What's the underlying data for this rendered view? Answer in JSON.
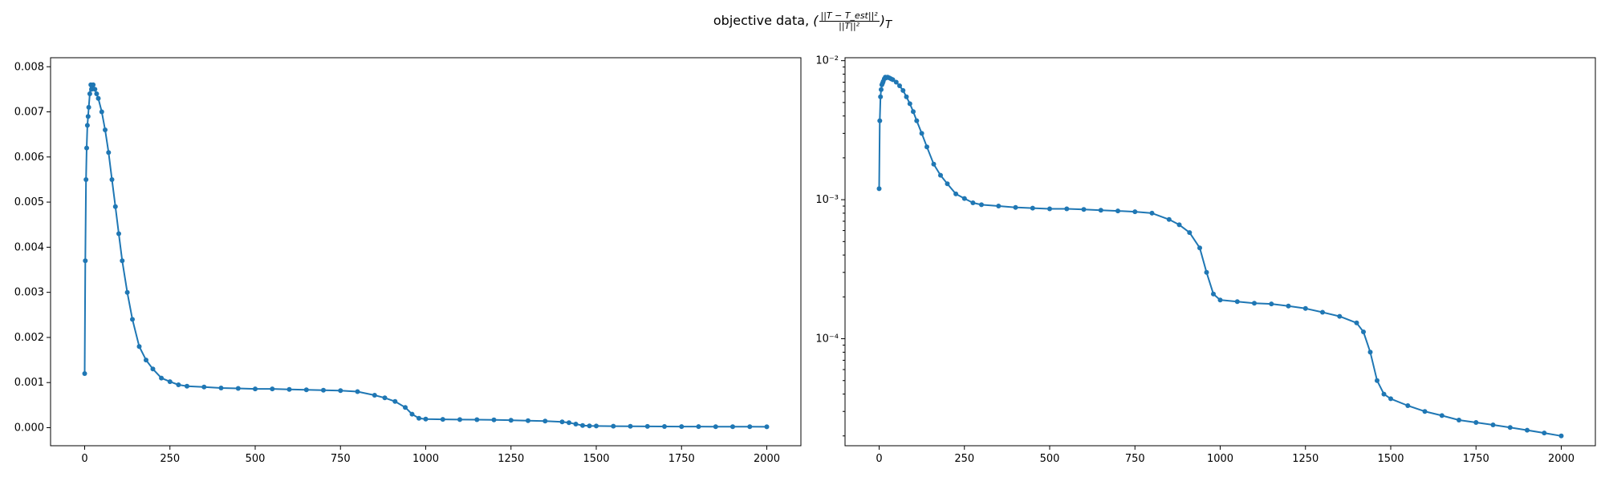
{
  "figure": {
    "title_prefix": "objective data,",
    "title_open": "(",
    "title_fraction_numerator": "||T − T_est||²",
    "title_fraction_denominator": "||T||²",
    "title_close": ")",
    "title_subscript": "T",
    "series_color": "#1f77b4"
  },
  "chart_data": [
    {
      "type": "line",
      "marker": "dot",
      "title": "",
      "xlabel": "",
      "ylabel": "",
      "yscale": "linear",
      "xlim": [
        -100,
        2100
      ],
      "ylim": [
        -0.0004,
        0.0082
      ],
      "xticks": [
        0,
        250,
        500,
        750,
        1000,
        1250,
        1500,
        1750,
        2000
      ],
      "xtick_labels": [
        "0",
        "250",
        "500",
        "750",
        "1000",
        "1250",
        "1500",
        "1750",
        "2000"
      ],
      "yticks": [
        0,
        0.001,
        0.002,
        0.003,
        0.004,
        0.005,
        0.006,
        0.007,
        0.008
      ],
      "ytick_labels": [
        "0.000",
        "0.001",
        "0.002",
        "0.003",
        "0.004",
        "0.005",
        "0.006",
        "0.007",
        "0.008"
      ],
      "grid": false,
      "series": [
        {
          "x": [
            0,
            2,
            4,
            6,
            8,
            10,
            12,
            15,
            18,
            20,
            25,
            30,
            35,
            40,
            50,
            60,
            70,
            80,
            90,
            100,
            110,
            125,
            140,
            160,
            180,
            200,
            225,
            250,
            275,
            300,
            350,
            400,
            450,
            500,
            550,
            600,
            650,
            700,
            750,
            800,
            850,
            880,
            910,
            940,
            960,
            980,
            1000,
            1050,
            1100,
            1150,
            1200,
            1250,
            1300,
            1350,
            1400,
            1420,
            1440,
            1460,
            1480,
            1500,
            1550,
            1600,
            1650,
            1700,
            1750,
            1800,
            1850,
            1900,
            1950,
            2000
          ],
          "y": [
            0.0012,
            0.0037,
            0.0055,
            0.0062,
            0.0067,
            0.0069,
            0.0071,
            0.0074,
            0.0076,
            0.0075,
            0.0076,
            0.0075,
            0.0074,
            0.0073,
            0.007,
            0.0066,
            0.0061,
            0.0055,
            0.0049,
            0.0043,
            0.0037,
            0.003,
            0.0024,
            0.0018,
            0.0015,
            0.0013,
            0.0011,
            0.00102,
            0.00095,
            0.00092,
            0.0009,
            0.00088,
            0.00087,
            0.00086,
            0.00086,
            0.00085,
            0.00084,
            0.00083,
            0.00082,
            0.0008,
            0.00072,
            0.00066,
            0.00058,
            0.00045,
            0.0003,
            0.00021,
            0.00019,
            0.000185,
            0.00018,
            0.000178,
            0.000172,
            0.000165,
            0.000155,
            0.000145,
            0.00013,
            0.000112,
            8e-05,
            5e-05,
            4e-05,
            3.7e-05,
            3.3e-05,
            3e-05,
            2.8e-05,
            2.6e-05,
            2.5e-05,
            2.4e-05,
            2.3e-05,
            2.2e-05,
            2.1e-05,
            2e-05
          ]
        }
      ]
    },
    {
      "type": "line",
      "marker": "dot",
      "title": "",
      "xlabel": "",
      "ylabel": "",
      "yscale": "log",
      "xlim": [
        -100,
        2100
      ],
      "ylim": [
        1.7e-05,
        0.0105
      ],
      "xticks": [
        0,
        250,
        500,
        750,
        1000,
        1250,
        1500,
        1750,
        2000
      ],
      "xtick_labels": [
        "0",
        "250",
        "500",
        "750",
        "1000",
        "1250",
        "1500",
        "1750",
        "2000"
      ],
      "yticks": [
        0.0001,
        0.001,
        0.01
      ],
      "ytick_labels": [
        "10⁻⁴",
        "10⁻³",
        "10⁻²"
      ],
      "grid": false,
      "series": [
        {
          "x": [
            0,
            2,
            4,
            6,
            8,
            10,
            12,
            15,
            18,
            20,
            25,
            30,
            35,
            40,
            50,
            60,
            70,
            80,
            90,
            100,
            110,
            125,
            140,
            160,
            180,
            200,
            225,
            250,
            275,
            300,
            350,
            400,
            450,
            500,
            550,
            600,
            650,
            700,
            750,
            800,
            850,
            880,
            910,
            940,
            960,
            980,
            1000,
            1050,
            1100,
            1150,
            1200,
            1250,
            1300,
            1350,
            1400,
            1420,
            1440,
            1460,
            1480,
            1500,
            1550,
            1600,
            1650,
            1700,
            1750,
            1800,
            1850,
            1900,
            1950,
            2000
          ],
          "y": [
            0.0012,
            0.0037,
            0.0055,
            0.0062,
            0.0067,
            0.0069,
            0.0071,
            0.0074,
            0.0076,
            0.0075,
            0.0076,
            0.0075,
            0.0074,
            0.0073,
            0.007,
            0.0066,
            0.0061,
            0.0055,
            0.0049,
            0.0043,
            0.0037,
            0.003,
            0.0024,
            0.0018,
            0.0015,
            0.0013,
            0.0011,
            0.00102,
            0.00095,
            0.00092,
            0.0009,
            0.00088,
            0.00087,
            0.00086,
            0.00086,
            0.00085,
            0.00084,
            0.00083,
            0.00082,
            0.0008,
            0.00072,
            0.00066,
            0.00058,
            0.00045,
            0.0003,
            0.00021,
            0.00019,
            0.000185,
            0.00018,
            0.000178,
            0.000172,
            0.000165,
            0.000155,
            0.000145,
            0.00013,
            0.000112,
            8e-05,
            5e-05,
            4e-05,
            3.7e-05,
            3.3e-05,
            3e-05,
            2.8e-05,
            2.6e-05,
            2.5e-05,
            2.4e-05,
            2.3e-05,
            2.2e-05,
            2.1e-05,
            2e-05
          ]
        }
      ]
    }
  ]
}
